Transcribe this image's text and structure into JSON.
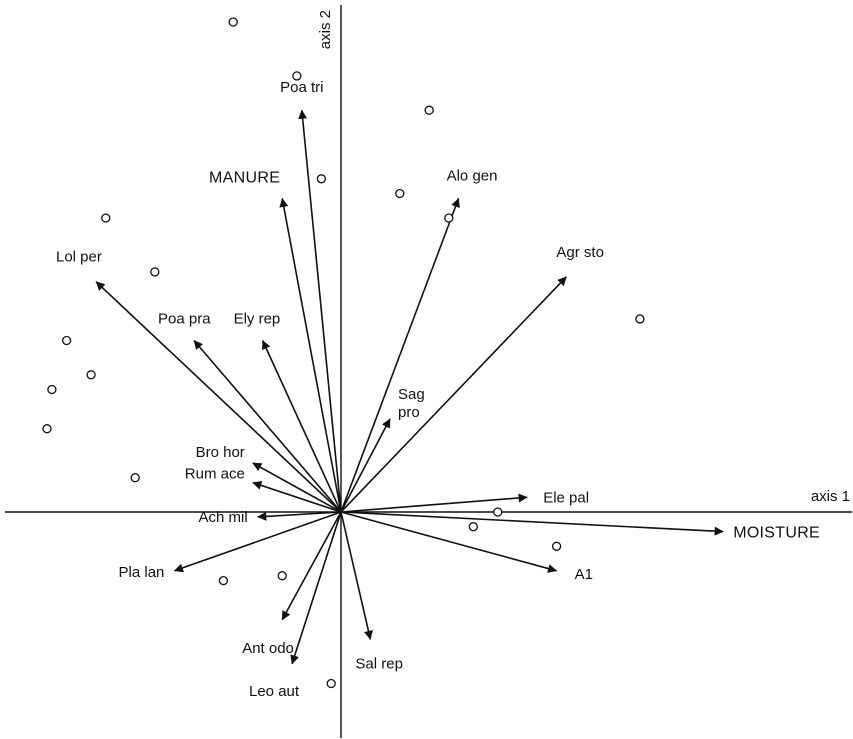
{
  "chart_data": {
    "type": "scatter",
    "title": "",
    "xlabel": "axis 1",
    "ylabel": "axis 2",
    "grid": false,
    "legend": "none",
    "xlim": [
      -3.4,
      5.2
    ],
    "ylim": [
      -2.3,
      5.0
    ],
    "species": [
      {
        "name": "Poa tri",
        "x": -0.4,
        "y": 4.1
      },
      {
        "name": "MANURE",
        "x": -0.6,
        "y": 3.2
      },
      {
        "name": "Alo gen",
        "x": 1.2,
        "y": 3.2
      },
      {
        "name": "Agr sto",
        "x": 2.3,
        "y": 2.4
      },
      {
        "name": "Lol per",
        "x": -2.5,
        "y": 2.35
      },
      {
        "name": "Poa pra",
        "x": -1.5,
        "y": 1.75
      },
      {
        "name": "Ely rep",
        "x": -0.8,
        "y": 1.75
      },
      {
        "name": "Sag pro",
        "x": 0.5,
        "y": 0.95
      },
      {
        "name": "Bro hor",
        "x": -0.9,
        "y": 0.5
      },
      {
        "name": "Rum ace",
        "x": -0.9,
        "y": 0.3
      },
      {
        "name": "Ele pal",
        "x": 1.9,
        "y": 0.15
      },
      {
        "name": "Ach mil",
        "x": -0.85,
        "y": -0.05
      },
      {
        "name": "MOISTURE",
        "x": 3.9,
        "y": -0.2
      },
      {
        "name": "A1",
        "x": 2.2,
        "y": -0.6
      },
      {
        "name": "Pla lan",
        "x": -1.7,
        "y": -0.6
      },
      {
        "name": "Ant odo",
        "x": -0.6,
        "y": -1.1
      },
      {
        "name": "Leo aut",
        "x": -0.5,
        "y": -1.55
      },
      {
        "name": "Sal rep",
        "x": 0.3,
        "y": -1.3
      }
    ],
    "samples": [
      {
        "x": -1.1,
        "y": 5.0
      },
      {
        "x": -0.45,
        "y": 4.45
      },
      {
        "x": 0.9,
        "y": 4.1
      },
      {
        "x": -0.2,
        "y": 3.4
      },
      {
        "x": 0.6,
        "y": 3.25
      },
      {
        "x": 1.1,
        "y": 3.0
      },
      {
        "x": -2.4,
        "y": 3.0
      },
      {
        "x": -1.9,
        "y": 2.45
      },
      {
        "x": 3.05,
        "y": 1.97
      },
      {
        "x": -2.8,
        "y": 1.75
      },
      {
        "x": -2.55,
        "y": 1.4
      },
      {
        "x": -2.95,
        "y": 1.25
      },
      {
        "x": -3.0,
        "y": 0.85
      },
      {
        "x": -2.1,
        "y": 0.35
      },
      {
        "x": 1.6,
        "y": 0.0
      },
      {
        "x": 1.35,
        "y": -0.15
      },
      {
        "x": 2.2,
        "y": -0.35
      },
      {
        "x": -1.2,
        "y": -0.7
      },
      {
        "x": -0.6,
        "y": -0.65
      },
      {
        "x": -0.1,
        "y": -1.75
      }
    ]
  }
}
